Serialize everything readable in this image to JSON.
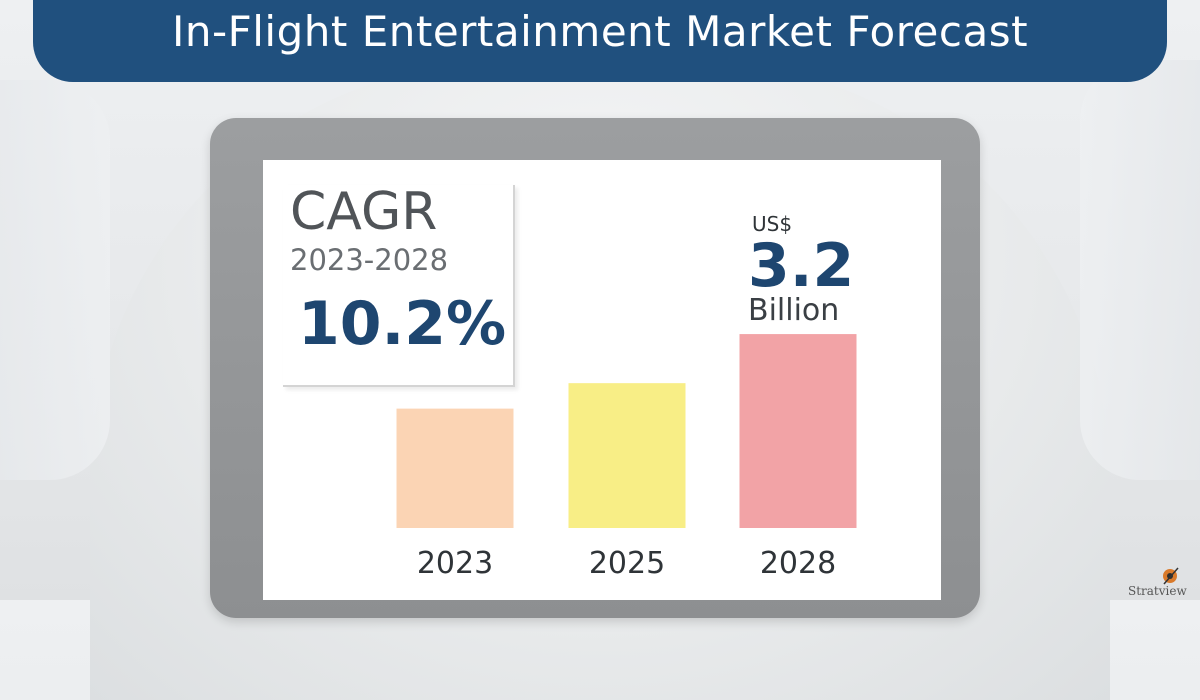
{
  "title": "In-Flight Entertainment Market Forecast",
  "cagr": {
    "label": "CAGR",
    "period": "2023-2028",
    "value": "10.2%"
  },
  "forecast": {
    "currency": "US$",
    "value": "3.2",
    "unit": "Billion"
  },
  "logo": {
    "text": "Stratview"
  },
  "colors": {
    "banner": "#20507e",
    "accent_text": "#1e4670",
    "bar_2023": "#fbd4b4",
    "bar_2025": "#f8ee86",
    "bar_2028": "#f2a3a6"
  },
  "chart_data": {
    "type": "bar",
    "categories": [
      "2023",
      "2025",
      "2028"
    ],
    "values": [
      1.97,
      2.39,
      3.2
    ],
    "colors": [
      "#fbd4b4",
      "#f8ee86",
      "#f2a3a6"
    ],
    "title": "",
    "xlabel": "",
    "ylabel": "",
    "value_labels": [
      "",
      "",
      "US$ 3.2 Billion"
    ]
  }
}
